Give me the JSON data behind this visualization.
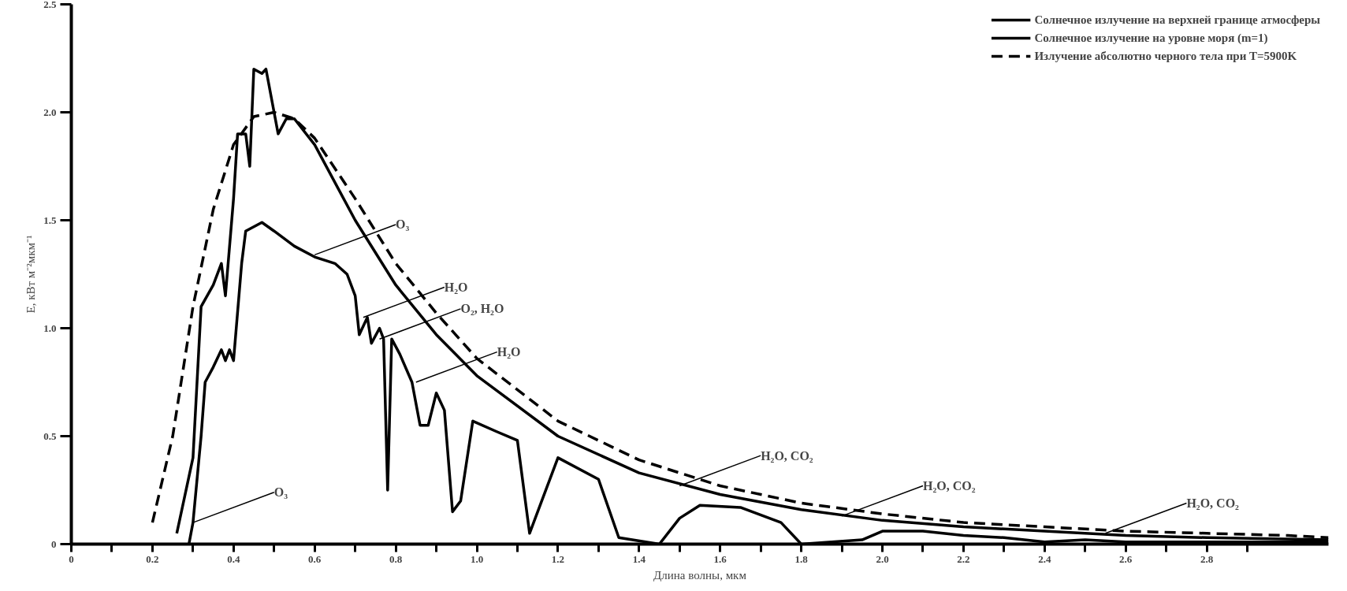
{
  "chart_data": {
    "type": "line",
    "xlabel": "Длина волны, мкм",
    "ylabel": "E, кВт м⁻²мкм⁻¹",
    "xlim": [
      0,
      3.1
    ],
    "ylim": [
      0,
      2.5
    ],
    "xticks": [
      0,
      {
        "value": 0.1,
        "label": null
      },
      0.2,
      {
        "value": 0.3,
        "label": null
      },
      0.4,
      {
        "value": 0.5,
        "label": null
      },
      0.6,
      {
        "value": 0.7,
        "label": null
      },
      0.8,
      {
        "value": 0.9,
        "label": null
      },
      {
        "value": 1,
        "label": "1.0"
      },
      {
        "value": 1.1,
        "label": null
      },
      1.2,
      {
        "value": 1.3,
        "label": null
      },
      1.4,
      {
        "value": 1.5,
        "label": null
      },
      1.6,
      {
        "value": 1.7,
        "label": null
      },
      1.8,
      {
        "value": 1.9,
        "label": null
      },
      {
        "value": 2,
        "label": "2.0"
      },
      {
        "value": 2.1,
        "label": null
      },
      2.2,
      {
        "value": 2.3,
        "label": null
      },
      2.4,
      {
        "value": 2.5,
        "label": null
      },
      2.6,
      {
        "value": 2.7,
        "label": null
      },
      2.8,
      {
        "value": 2.9,
        "label": null
      }
    ],
    "yticks": [
      0,
      0.5,
      {
        "value": 1,
        "label": "1.0"
      },
      1.5,
      {
        "value": 2,
        "label": "2.0"
      },
      2.5
    ],
    "grid": false,
    "legend": "top right",
    "series": [
      {
        "name": "Солнечное излучение на верхней границе атмосферы",
        "color": "#000000",
        "line_style": "solid",
        "x": [
          0.26,
          0.3,
          0.32,
          0.35,
          0.37,
          0.38,
          0.4,
          0.41,
          0.43,
          0.44,
          0.45,
          0.47,
          0.48,
          0.5,
          0.51,
          0.53,
          0.55,
          0.6,
          0.7,
          0.8,
          0.9,
          1.0,
          1.2,
          1.4,
          1.6,
          1.8,
          2.0,
          2.2,
          2.4,
          2.6,
          2.8,
          3.1
        ],
        "values": [
          0.05,
          0.4,
          1.1,
          1.2,
          1.3,
          1.15,
          1.6,
          1.9,
          1.9,
          1.75,
          2.2,
          2.18,
          2.2,
          2.0,
          1.9,
          1.97,
          1.97,
          1.85,
          1.5,
          1.2,
          0.97,
          0.78,
          0.5,
          0.33,
          0.23,
          0.16,
          0.11,
          0.08,
          0.06,
          0.04,
          0.03,
          0.02
        ]
      },
      {
        "name": "Солнечное излучение на уровне моря (m=1)",
        "color": "#000000",
        "line_style": "solid",
        "x": [
          0.29,
          0.3,
          0.32,
          0.33,
          0.35,
          0.37,
          0.38,
          0.39,
          0.4,
          0.42,
          0.43,
          0.47,
          0.5,
          0.55,
          0.6,
          0.65,
          0.68,
          0.7,
          0.71,
          0.73,
          0.74,
          0.76,
          0.77,
          0.78,
          0.79,
          0.81,
          0.84,
          0.86,
          0.88,
          0.9,
          0.92,
          0.94,
          0.96,
          0.99,
          1.05,
          1.1,
          1.13,
          1.16,
          1.2,
          1.3,
          1.35,
          1.45,
          1.5,
          1.55,
          1.65,
          1.75,
          1.8,
          1.95,
          2.0,
          2.1,
          2.2,
          2.3,
          2.4,
          2.5,
          2.6,
          2.8,
          3.1
        ],
        "values": [
          0,
          0.1,
          0.5,
          0.75,
          0.82,
          0.9,
          0.85,
          0.9,
          0.85,
          1.3,
          1.45,
          1.49,
          1.45,
          1.38,
          1.33,
          1.3,
          1.25,
          1.15,
          0.97,
          1.05,
          0.93,
          1.0,
          0.95,
          0.25,
          0.95,
          0.88,
          0.75,
          0.55,
          0.55,
          0.7,
          0.62,
          0.15,
          0.2,
          0.57,
          0.52,
          0.48,
          0.05,
          0.2,
          0.4,
          0.3,
          0.03,
          0,
          0.12,
          0.18,
          0.17,
          0.1,
          0,
          0.02,
          0.06,
          0.06,
          0.04,
          0.03,
          0.01,
          0.02,
          0.01,
          0.01,
          0.01
        ]
      },
      {
        "name": "Излучение абсолютно черного тела при T=5900K",
        "color": "#000000",
        "line_style": "dashed",
        "x": [
          0.2,
          0.25,
          0.3,
          0.35,
          0.4,
          0.45,
          0.5,
          0.55,
          0.6,
          0.7,
          0.8,
          0.9,
          1.0,
          1.2,
          1.4,
          1.6,
          1.8,
          2.0,
          2.2,
          2.4,
          2.6,
          2.8,
          3.0,
          3.1
        ],
        "values": [
          0.1,
          0.5,
          1.1,
          1.55,
          1.85,
          1.98,
          2.0,
          1.97,
          1.88,
          1.6,
          1.3,
          1.07,
          0.86,
          0.57,
          0.39,
          0.27,
          0.19,
          0.14,
          0.1,
          0.08,
          0.06,
          0.05,
          0.04,
          0.03
        ]
      }
    ],
    "annotations": [
      {
        "text": "O₃",
        "x": 0.3,
        "y": 0.1
      },
      {
        "text": "O₃",
        "x": 0.6,
        "y": 1.34
      },
      {
        "text": "H₂O",
        "x": 0.72,
        "y": 1.05
      },
      {
        "text": "O₂, H₂O",
        "x": 0.76,
        "y": 0.95
      },
      {
        "text": "H₂O",
        "x": 0.85,
        "y": 0.75
      },
      {
        "text": "H₂O, CO₂",
        "x": 1.5,
        "y": 0.27
      },
      {
        "text": "H₂O, CO₂",
        "x": 1.9,
        "y": 0.13
      },
      {
        "text": "H₂O, CO₂",
        "x": 2.55,
        "y": 0.05
      }
    ]
  }
}
